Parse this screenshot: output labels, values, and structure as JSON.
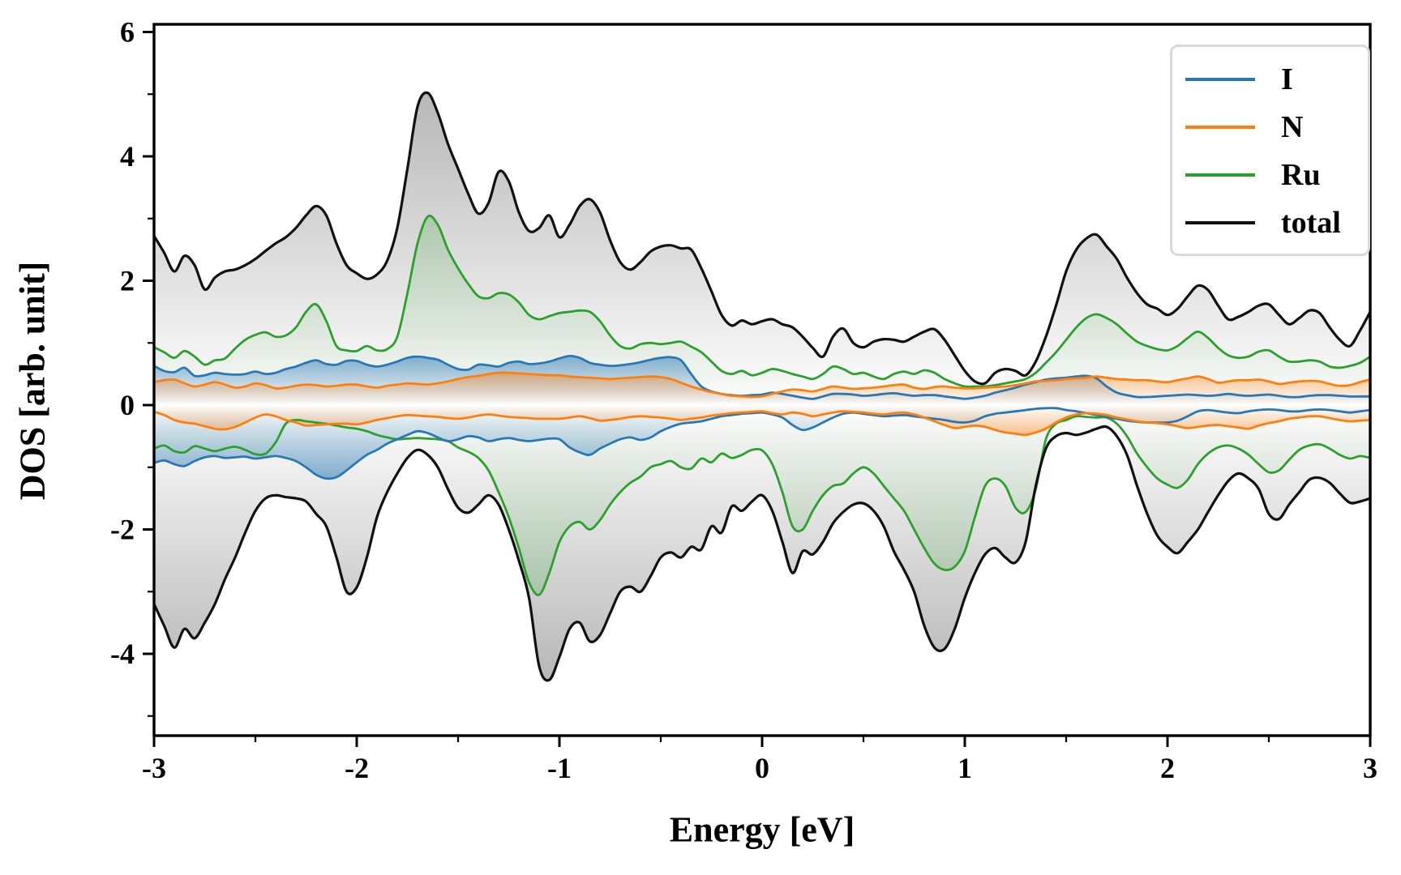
{
  "figure": {
    "xlabel": "Energy [eV]",
    "ylabel": "DOS [arb. unit]"
  },
  "chart_data": {
    "type": "area",
    "title": "",
    "xlabel": "Energy [eV]",
    "ylabel": "DOS [arb. unit]",
    "grid": false,
    "xlim": [
      -3,
      3
    ],
    "ylim": [
      -5.32,
      6.12
    ],
    "x_ticks_major": [
      -3,
      -2,
      -1,
      0,
      1,
      2,
      3
    ],
    "x_ticks_minor": [
      -2.5,
      -1.5,
      -0.5,
      0.5,
      1.5,
      2.5
    ],
    "y_ticks_major": [
      -4,
      -2,
      0,
      2,
      4,
      6
    ],
    "y_ticks_minor": [
      -5,
      -3,
      -1,
      1,
      3,
      5
    ],
    "x_start": -3,
    "x_step": 0.05,
    "legend": {
      "position": "top-right",
      "entries": [
        {
          "label": "I",
          "color": "#2878b5"
        },
        {
          "label": "N",
          "color": "#ff7f0e"
        },
        {
          "label": "Ru",
          "color": "#2ca02c"
        },
        {
          "label": "total",
          "color": "#111111"
        }
      ]
    },
    "series": [
      {
        "name": "total",
        "color": "#111111",
        "fill_alpha": 0.3,
        "line_width": 3.2,
        "spin_up": [
          2.72,
          2.45,
          2.15,
          2.4,
          2.25,
          1.86,
          2.05,
          2.15,
          2.18,
          2.25,
          2.35,
          2.48,
          2.6,
          2.7,
          2.85,
          3.05,
          3.2,
          3.05,
          2.6,
          2.25,
          2.12,
          2.03,
          2.1,
          2.32,
          2.85,
          3.8,
          4.8,
          5.02,
          4.7,
          4.2,
          3.8,
          3.4,
          3.08,
          3.25,
          3.75,
          3.6,
          3.1,
          2.8,
          2.85,
          3.05,
          2.7,
          2.9,
          3.2,
          3.31,
          3.1,
          2.65,
          2.3,
          2.18,
          2.3,
          2.47,
          2.55,
          2.57,
          2.52,
          2.5,
          2.2,
          1.83,
          1.45,
          1.28,
          1.36,
          1.3,
          1.35,
          1.38,
          1.3,
          1.25,
          1.1,
          0.92,
          0.78,
          1.1,
          1.23,
          1.0,
          0.93,
          1.02,
          1.06,
          1.05,
          1.02,
          1.1,
          1.18,
          1.22,
          1.05,
          0.8,
          0.55,
          0.38,
          0.35,
          0.52,
          0.58,
          0.55,
          0.48,
          0.7,
          1.1,
          1.6,
          2.15,
          2.5,
          2.68,
          2.74,
          2.55,
          2.35,
          2.05,
          1.8,
          1.62,
          1.55,
          1.45,
          1.55,
          1.75,
          1.92,
          1.85,
          1.6,
          1.38,
          1.42,
          1.5,
          1.6,
          1.62,
          1.45,
          1.3,
          1.4,
          1.52,
          1.48,
          1.25,
          1.05,
          0.95,
          1.2,
          1.5
        ],
        "spin_down": [
          -3.2,
          -3.55,
          -3.9,
          -3.6,
          -3.75,
          -3.5,
          -3.2,
          -2.8,
          -2.45,
          -2.05,
          -1.7,
          -1.5,
          -1.45,
          -1.48,
          -1.5,
          -1.55,
          -1.75,
          -1.95,
          -2.45,
          -3.0,
          -2.93,
          -2.45,
          -1.8,
          -1.4,
          -1.1,
          -0.85,
          -0.72,
          -0.8,
          -1.0,
          -1.35,
          -1.65,
          -1.73,
          -1.6,
          -1.45,
          -1.6,
          -2.0,
          -2.5,
          -3.1,
          -4.2,
          -4.42,
          -4.05,
          -3.6,
          -3.5,
          -3.8,
          -3.7,
          -3.35,
          -3.0,
          -2.92,
          -3.0,
          -2.75,
          -2.45,
          -2.37,
          -2.45,
          -2.28,
          -2.32,
          -1.95,
          -2.05,
          -1.63,
          -1.7,
          -1.55,
          -1.45,
          -1.7,
          -2.2,
          -2.7,
          -2.35,
          -2.4,
          -2.2,
          -1.9,
          -1.72,
          -1.6,
          -1.58,
          -1.7,
          -1.95,
          -2.35,
          -2.65,
          -3.0,
          -3.55,
          -3.9,
          -3.92,
          -3.6,
          -3.1,
          -2.7,
          -2.4,
          -2.3,
          -2.45,
          -2.53,
          -2.2,
          -1.3,
          -0.7,
          -0.5,
          -0.45,
          -0.48,
          -0.44,
          -0.38,
          -0.35,
          -0.5,
          -0.8,
          -1.3,
          -1.75,
          -2.1,
          -2.28,
          -2.38,
          -2.2,
          -2.0,
          -1.72,
          -1.45,
          -1.22,
          -1.1,
          -1.18,
          -1.35,
          -1.75,
          -1.83,
          -1.6,
          -1.4,
          -1.2,
          -1.17,
          -1.25,
          -1.42,
          -1.57,
          -1.55,
          -1.5
        ]
      },
      {
        "name": "Ru",
        "color": "#2ca02c",
        "fill_alpha": 0.22,
        "line_width": 2.8,
        "spin_up": [
          0.93,
          0.85,
          0.76,
          0.87,
          0.78,
          0.65,
          0.72,
          0.75,
          0.91,
          1.05,
          1.13,
          1.17,
          1.1,
          1.12,
          1.25,
          1.5,
          1.62,
          1.35,
          0.95,
          0.88,
          0.87,
          0.95,
          0.88,
          0.9,
          1.1,
          1.8,
          2.6,
          3.03,
          2.9,
          2.5,
          2.2,
          1.95,
          1.75,
          1.72,
          1.8,
          1.78,
          1.65,
          1.45,
          1.38,
          1.43,
          1.48,
          1.5,
          1.52,
          1.5,
          1.35,
          1.12,
          0.95,
          0.91,
          0.98,
          1.0,
          0.98,
          1.0,
          1.02,
          0.94,
          0.85,
          0.7,
          0.55,
          0.5,
          0.55,
          0.48,
          0.52,
          0.58,
          0.55,
          0.5,
          0.46,
          0.42,
          0.5,
          0.62,
          0.58,
          0.5,
          0.52,
          0.46,
          0.42,
          0.5,
          0.54,
          0.5,
          0.56,
          0.52,
          0.42,
          0.35,
          0.3,
          0.3,
          0.3,
          0.32,
          0.35,
          0.38,
          0.42,
          0.52,
          0.68,
          0.85,
          1.05,
          1.25,
          1.4,
          1.46,
          1.4,
          1.3,
          1.15,
          1.02,
          0.95,
          0.9,
          0.88,
          0.95,
          1.08,
          1.18,
          1.08,
          0.92,
          0.8,
          0.76,
          0.78,
          0.86,
          0.88,
          0.78,
          0.7,
          0.7,
          0.72,
          0.7,
          0.62,
          0.6,
          0.63,
          0.68,
          0.78
        ],
        "spin_down": [
          -0.7,
          -0.65,
          -0.74,
          -0.76,
          -0.66,
          -0.7,
          -0.74,
          -0.7,
          -0.67,
          -0.72,
          -0.79,
          -0.78,
          -0.6,
          -0.3,
          -0.24,
          -0.26,
          -0.28,
          -0.3,
          -0.33,
          -0.36,
          -0.38,
          -0.42,
          -0.48,
          -0.52,
          -0.55,
          -0.54,
          -0.53,
          -0.54,
          -0.55,
          -0.58,
          -0.68,
          -0.75,
          -0.85,
          -1.05,
          -1.4,
          -1.8,
          -2.3,
          -2.85,
          -3.05,
          -2.7,
          -2.2,
          -1.95,
          -1.88,
          -2.0,
          -1.85,
          -1.6,
          -1.4,
          -1.25,
          -1.15,
          -1.0,
          -0.95,
          -0.9,
          -1.0,
          -1.02,
          -0.86,
          -0.92,
          -0.78,
          -0.85,
          -0.8,
          -0.72,
          -0.73,
          -0.95,
          -1.4,
          -1.95,
          -2.0,
          -1.7,
          -1.45,
          -1.3,
          -1.26,
          -1.1,
          -1.0,
          -1.1,
          -1.3,
          -1.5,
          -1.7,
          -2.0,
          -2.3,
          -2.55,
          -2.65,
          -2.6,
          -2.35,
          -1.8,
          -1.3,
          -1.18,
          -1.3,
          -1.65,
          -1.72,
          -1.35,
          -0.55,
          -0.3,
          -0.24,
          -0.18,
          -0.19,
          -0.2,
          -0.2,
          -0.3,
          -0.5,
          -0.78,
          -1.0,
          -1.18,
          -1.28,
          -1.33,
          -1.2,
          -0.95,
          -0.78,
          -0.68,
          -0.65,
          -0.7,
          -0.8,
          -0.95,
          -1.08,
          -1.05,
          -0.88,
          -0.72,
          -0.65,
          -0.63,
          -0.7,
          -0.8,
          -0.86,
          -0.82,
          -0.85
        ]
      },
      {
        "name": "I",
        "color": "#2878b5",
        "fill_alpha": 0.55,
        "line_width": 2.8,
        "spin_up": [
          0.63,
          0.55,
          0.53,
          0.6,
          0.47,
          0.48,
          0.52,
          0.5,
          0.49,
          0.5,
          0.54,
          0.5,
          0.52,
          0.58,
          0.62,
          0.68,
          0.72,
          0.66,
          0.65,
          0.71,
          0.71,
          0.65,
          0.62,
          0.65,
          0.7,
          0.76,
          0.78,
          0.76,
          0.73,
          0.65,
          0.58,
          0.57,
          0.65,
          0.64,
          0.62,
          0.68,
          0.7,
          0.66,
          0.67,
          0.7,
          0.75,
          0.79,
          0.76,
          0.68,
          0.65,
          0.63,
          0.64,
          0.66,
          0.69,
          0.73,
          0.76,
          0.77,
          0.72,
          0.5,
          0.3,
          0.22,
          0.18,
          0.16,
          0.15,
          0.16,
          0.17,
          0.2,
          0.18,
          0.15,
          0.12,
          0.1,
          0.14,
          0.18,
          0.18,
          0.17,
          0.15,
          0.16,
          0.18,
          0.19,
          0.17,
          0.15,
          0.16,
          0.16,
          0.14,
          0.12,
          0.1,
          0.12,
          0.15,
          0.2,
          0.24,
          0.28,
          0.33,
          0.37,
          0.41,
          0.43,
          0.44,
          0.46,
          0.47,
          0.43,
          0.3,
          0.2,
          0.16,
          0.13,
          0.13,
          0.14,
          0.15,
          0.16,
          0.17,
          0.16,
          0.15,
          0.16,
          0.18,
          0.16,
          0.15,
          0.16,
          0.17,
          0.15,
          0.13,
          0.13,
          0.15,
          0.16,
          0.16,
          0.15,
          0.14,
          0.14,
          0.14
        ],
        "spin_down": [
          -0.93,
          -0.89,
          -0.95,
          -0.98,
          -0.9,
          -0.84,
          -0.82,
          -0.85,
          -0.84,
          -0.83,
          -0.86,
          -0.84,
          -0.82,
          -0.85,
          -0.9,
          -1.0,
          -1.12,
          -1.18,
          -1.16,
          -1.05,
          -0.92,
          -0.8,
          -0.72,
          -0.62,
          -0.55,
          -0.48,
          -0.42,
          -0.45,
          -0.52,
          -0.58,
          -0.55,
          -0.5,
          -0.52,
          -0.58,
          -0.55,
          -0.53,
          -0.56,
          -0.58,
          -0.56,
          -0.54,
          -0.55,
          -0.68,
          -0.76,
          -0.8,
          -0.7,
          -0.62,
          -0.55,
          -0.52,
          -0.56,
          -0.52,
          -0.42,
          -0.35,
          -0.3,
          -0.28,
          -0.26,
          -0.22,
          -0.18,
          -0.16,
          -0.14,
          -0.13,
          -0.12,
          -0.15,
          -0.2,
          -0.32,
          -0.4,
          -0.36,
          -0.28,
          -0.2,
          -0.14,
          -0.12,
          -0.14,
          -0.16,
          -0.18,
          -0.17,
          -0.16,
          -0.18,
          -0.2,
          -0.22,
          -0.24,
          -0.27,
          -0.28,
          -0.25,
          -0.18,
          -0.14,
          -0.12,
          -0.1,
          -0.08,
          -0.06,
          -0.05,
          -0.05,
          -0.08,
          -0.1,
          -0.13,
          -0.16,
          -0.19,
          -0.22,
          -0.25,
          -0.27,
          -0.28,
          -0.28,
          -0.28,
          -0.25,
          -0.18,
          -0.1,
          -0.08,
          -0.1,
          -0.12,
          -0.13,
          -0.1,
          -0.08,
          -0.07,
          -0.08,
          -0.1,
          -0.1,
          -0.08,
          -0.07,
          -0.08,
          -0.1,
          -0.12,
          -0.1,
          -0.08
        ]
      },
      {
        "name": "N",
        "color": "#ff7f0e",
        "fill_alpha": 0.45,
        "line_width": 2.8,
        "spin_up": [
          0.37,
          0.4,
          0.41,
          0.35,
          0.3,
          0.33,
          0.37,
          0.33,
          0.28,
          0.3,
          0.35,
          0.32,
          0.27,
          0.28,
          0.31,
          0.33,
          0.32,
          0.3,
          0.31,
          0.33,
          0.33,
          0.3,
          0.28,
          0.31,
          0.33,
          0.35,
          0.34,
          0.33,
          0.35,
          0.38,
          0.42,
          0.45,
          0.47,
          0.5,
          0.52,
          0.52,
          0.51,
          0.5,
          0.49,
          0.48,
          0.48,
          0.46,
          0.45,
          0.44,
          0.43,
          0.42,
          0.43,
          0.44,
          0.45,
          0.46,
          0.45,
          0.42,
          0.36,
          0.3,
          0.25,
          0.21,
          0.18,
          0.15,
          0.14,
          0.13,
          0.14,
          0.18,
          0.22,
          0.25,
          0.24,
          0.22,
          0.26,
          0.3,
          0.28,
          0.26,
          0.27,
          0.28,
          0.3,
          0.32,
          0.33,
          0.28,
          0.26,
          0.29,
          0.3,
          0.28,
          0.27,
          0.27,
          0.28,
          0.29,
          0.3,
          0.32,
          0.35,
          0.38,
          0.39,
          0.4,
          0.42,
          0.43,
          0.44,
          0.46,
          0.44,
          0.42,
          0.41,
          0.4,
          0.4,
          0.38,
          0.37,
          0.4,
          0.43,
          0.46,
          0.42,
          0.36,
          0.38,
          0.4,
          0.4,
          0.41,
          0.38,
          0.34,
          0.36,
          0.38,
          0.39,
          0.38,
          0.34,
          0.31,
          0.32,
          0.37,
          0.41
        ],
        "spin_down": [
          -0.11,
          -0.16,
          -0.24,
          -0.28,
          -0.3,
          -0.34,
          -0.38,
          -0.39,
          -0.35,
          -0.28,
          -0.2,
          -0.15,
          -0.18,
          -0.24,
          -0.28,
          -0.33,
          -0.32,
          -0.31,
          -0.3,
          -0.3,
          -0.31,
          -0.28,
          -0.24,
          -0.21,
          -0.18,
          -0.16,
          -0.17,
          -0.18,
          -0.19,
          -0.21,
          -0.22,
          -0.2,
          -0.17,
          -0.15,
          -0.17,
          -0.19,
          -0.2,
          -0.21,
          -0.22,
          -0.22,
          -0.22,
          -0.2,
          -0.18,
          -0.21,
          -0.25,
          -0.24,
          -0.22,
          -0.19,
          -0.18,
          -0.19,
          -0.2,
          -0.22,
          -0.24,
          -0.22,
          -0.2,
          -0.17,
          -0.15,
          -0.13,
          -0.12,
          -0.11,
          -0.1,
          -0.13,
          -0.15,
          -0.12,
          -0.14,
          -0.18,
          -0.15,
          -0.12,
          -0.1,
          -0.11,
          -0.12,
          -0.14,
          -0.15,
          -0.13,
          -0.12,
          -0.15,
          -0.2,
          -0.26,
          -0.32,
          -0.37,
          -0.35,
          -0.33,
          -0.35,
          -0.4,
          -0.44,
          -0.46,
          -0.48,
          -0.44,
          -0.38,
          -0.28,
          -0.2,
          -0.15,
          -0.13,
          -0.14,
          -0.16,
          -0.2,
          -0.23,
          -0.26,
          -0.28,
          -0.29,
          -0.31,
          -0.34,
          -0.37,
          -0.35,
          -0.33,
          -0.32,
          -0.34,
          -0.36,
          -0.38,
          -0.33,
          -0.29,
          -0.26,
          -0.22,
          -0.2,
          -0.18,
          -0.18,
          -0.21,
          -0.24,
          -0.26,
          -0.25,
          -0.24
        ]
      }
    ]
  }
}
